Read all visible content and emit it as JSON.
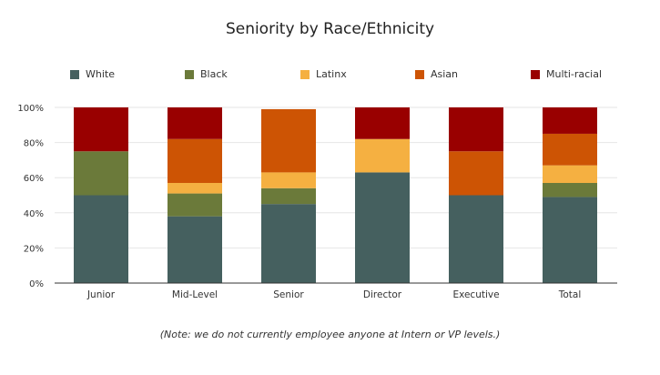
{
  "chart_data": {
    "type": "bar",
    "stacked": true,
    "title": "Seniority by Race/Ethnicity",
    "categories": [
      "Junior",
      "Mid-Level",
      "Senior",
      "Director",
      "Executive",
      "Total"
    ],
    "series": [
      {
        "name": "White",
        "color": "#45605f",
        "values": [
          50,
          38,
          45,
          63,
          50,
          49
        ]
      },
      {
        "name": "Black",
        "color": "#6b7a3a",
        "values": [
          25,
          13,
          9,
          0,
          0,
          8
        ]
      },
      {
        "name": "Latinx",
        "color": "#f5b041",
        "values": [
          0,
          6,
          9,
          19,
          0,
          10
        ]
      },
      {
        "name": "Asian",
        "color": "#cd5404",
        "values": [
          0,
          25,
          36,
          0,
          25,
          18
        ]
      },
      {
        "name": "Multi-racial",
        "color": "#990000",
        "values": [
          25,
          18,
          0,
          18,
          25,
          15
        ]
      }
    ],
    "y_ticks": [
      "0%",
      "20%",
      "40%",
      "60%",
      "80%",
      "100%"
    ],
    "ylim": [
      0,
      100
    ],
    "grid": true,
    "legend_position": "top",
    "note": "(Note: we do not currently employee anyone at Intern or VP levels.)"
  }
}
